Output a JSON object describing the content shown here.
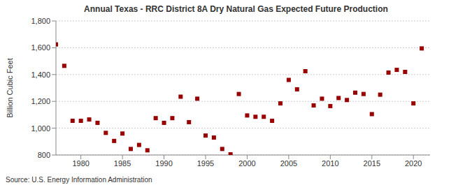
{
  "chart_data": {
    "type": "scatter",
    "title": "Annual Texas - RRC District 8A Dry Natural Gas Expected Future Production",
    "source": "Source: U.S. Energy Information Administration",
    "y_label": "Billion Cubic Feet",
    "x": [
      1977,
      1978,
      1979,
      1980,
      1981,
      1982,
      1983,
      1984,
      1985,
      1986,
      1987,
      1988,
      1989,
      1990,
      1991,
      1992,
      1993,
      1994,
      1995,
      1996,
      1997,
      1998,
      1999,
      2000,
      2001,
      2002,
      2003,
      2004,
      2005,
      2006,
      2007,
      2008,
      2009,
      2010,
      2011,
      2012,
      2013,
      2014,
      2015,
      2016,
      2017,
      2018,
      2019,
      2020,
      2021
    ],
    "values": [
      1625,
      1465,
      1055,
      1055,
      1065,
      1040,
      965,
      905,
      960,
      845,
      875,
      835,
      1075,
      1040,
      1075,
      1235,
      1045,
      1220,
      945,
      930,
      845,
      805,
      1255,
      1095,
      1085,
      1085,
      1055,
      1185,
      1360,
      1290,
      1425,
      1170,
      1220,
      1165,
      1225,
      1210,
      1265,
      1255,
      1105,
      1250,
      1415,
      1435,
      1420,
      1185,
      1595
    ],
    "color": "#990000",
    "marker": "square",
    "xlim": [
      1977,
      2022
    ],
    "xticks": [
      1980,
      1985,
      1990,
      1995,
      2000,
      2005,
      2010,
      2015,
      2020
    ],
    "ylim": [
      800,
      1800
    ],
    "yticks": [
      800,
      {
        "value": 1000,
        "label": "1,000"
      },
      {
        "value": 1200,
        "label": "1,200"
      },
      {
        "value": 1400,
        "label": "1,400"
      },
      {
        "value": 1600,
        "label": "1,600"
      },
      {
        "value": 1800,
        "label": "1,800"
      }
    ],
    "grid": true
  }
}
